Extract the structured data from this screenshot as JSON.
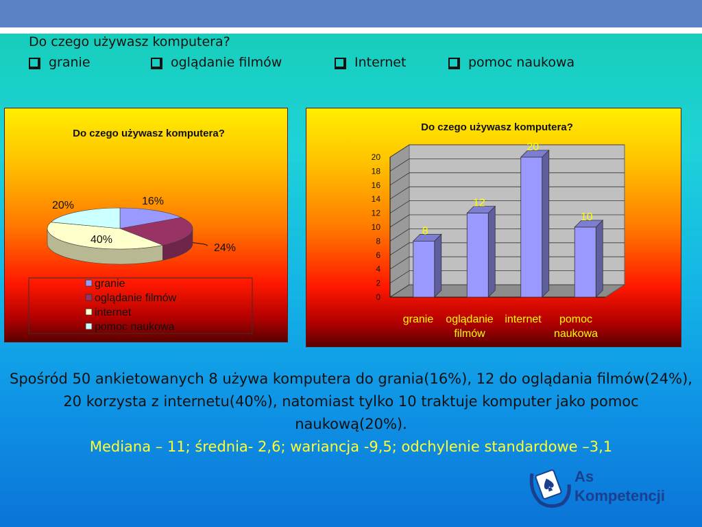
{
  "slide": {
    "question": "Do czego używasz komputera?",
    "options": [
      "granie",
      "oglądanie filmów",
      "Internet",
      "pomoc naukowa"
    ],
    "summary": "Spośród 50 ankietowanych 8 używa komputera do grania(16%), 12 do oglądania filmów(24%), 20 korzysta z internetu(40%), natomiast tylko 10 traktuje komputer jako pomoc naukową(20%).",
    "stats": "Mediana – 11; średnia- 2,6; wariancja -9,5; odchylenie standardowe –3,1",
    "logo": {
      "line1": "As",
      "line2": "Kompetencji"
    }
  },
  "colors": {
    "granie": "#9999ff",
    "ogladanie": "#993366",
    "internet": "#ffffcc",
    "pomoc": "#ccffff",
    "bar_fill": "#9999ff",
    "bar_label": "#ffff00"
  },
  "chart_data": [
    {
      "type": "pie",
      "title": "Do czego używasz komputera?",
      "categories": [
        "granie",
        "oglądanie filmów",
        "internet",
        "pomoc naukowa"
      ],
      "values": [
        16,
        24,
        40,
        20
      ],
      "labels": [
        "16%",
        "24%",
        "40%",
        "20%"
      ],
      "legend": "bottom"
    },
    {
      "type": "bar",
      "title": "Do czego używasz komputera?",
      "categories": [
        "granie",
        "oglądanie filmów",
        "internet",
        "pomoc naukowa"
      ],
      "values": [
        8,
        12,
        20,
        10
      ],
      "ylim": [
        0,
        20
      ],
      "yticks": [
        0,
        2,
        4,
        6,
        8,
        10,
        12,
        14,
        16,
        18,
        20
      ],
      "grid": true
    }
  ]
}
